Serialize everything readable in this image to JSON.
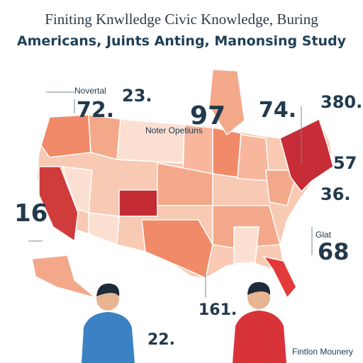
{
  "header": {
    "title": "Finiting Knwlledge Civic Knowledge, Buring",
    "subtitle": "Americans, Juints Anting, Manonsing Study"
  },
  "labels": [
    "Novertal",
    "72.",
    "23.",
    "97",
    "74.",
    "380.",
    "Noter Opetiuns",
    "57",
    "36.",
    "16",
    "Glat",
    "68",
    "161.",
    "22."
  ],
  "footer": "Fintlon Mounery"
}
